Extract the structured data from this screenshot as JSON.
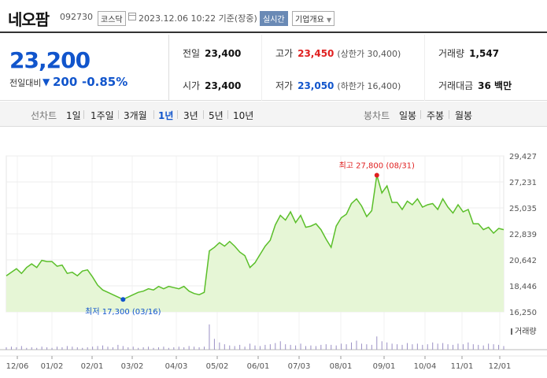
{
  "header": {
    "stock_name": "네오팜",
    "stock_code": "092730",
    "market": "코스닥",
    "date_text": "2023.12.06 10:22 기준(장중)",
    "realtime_label": "실시간",
    "company_overview_label": "기업개요",
    "icons": {
      "calendar": "calendar-icon",
      "dropdown": "chevron-down-icon"
    }
  },
  "summary": {
    "current_price": "23,200",
    "diff_label": "전일대비",
    "diff_arrow": "▼",
    "diff_value": "200",
    "diff_rate": "-0.85%",
    "prev_close_label": "전일",
    "prev_close": "23,400",
    "open_label": "시가",
    "open": "23,400",
    "high_label": "고가",
    "high": "23,450",
    "upper_limit": "(상한가 30,400)",
    "low_label": "저가",
    "low": "23,050",
    "lower_limit": "(하한가 16,400)",
    "volume_label": "거래량",
    "volume": "1,547",
    "amount_label": "거래대금",
    "amount": "36 백만",
    "colors": {
      "up": "#e02020",
      "down": "#1155cc"
    }
  },
  "tabs": {
    "line_chart_label": "선차트",
    "periods": [
      "1일",
      "1주일",
      "3개월",
      "1년",
      "3년",
      "5년",
      "10년"
    ],
    "active_period": "1년",
    "candle_chart_label": "봉차트",
    "candles": [
      "일봉",
      "주봉",
      "월봉"
    ]
  },
  "chart_data": {
    "type": "area",
    "title": "",
    "xlabel": "",
    "ylabel": "",
    "x_ticks": [
      "12/06",
      "01/02",
      "02/01",
      "03/02",
      "04/03",
      "05/02",
      "06/01",
      "07/03",
      "08/01",
      "09/01",
      "10/04",
      "11/01",
      "12/01"
    ],
    "y_ticks": [
      29427,
      27231,
      25035,
      22839,
      20642,
      18446,
      16250
    ],
    "y_tick_labels": [
      "29,427",
      "27,231",
      "25,035",
      "22,839",
      "20,642",
      "18,446",
      "16,250"
    ],
    "ylim": [
      16250,
      29427
    ],
    "volume_label": "거래량",
    "high_annotation": "최고 27,800 (08/31)",
    "low_annotation": "최저 17,300 (03/16)",
    "high_point": {
      "x": "08/31",
      "y": 27800
    },
    "low_point": {
      "x": "03/16",
      "y": 17300
    },
    "series": [
      {
        "values": [
          19300,
          19600,
          19900,
          19500,
          20000,
          20300,
          20000,
          20600,
          20500,
          20500,
          20100,
          20200,
          19500,
          19600,
          19300,
          19700,
          19800,
          19200,
          18500,
          18100,
          17900,
          17700,
          17500,
          17300,
          17500,
          17700,
          17900,
          18000,
          18200,
          18100,
          18400,
          18200,
          18400,
          18300,
          18200,
          18400,
          18000,
          17800,
          17700,
          17900,
          21400,
          21700,
          22100,
          21800,
          22200,
          21800,
          21300,
          21000,
          20000,
          20400,
          21100,
          21800,
          22300,
          23600,
          24400,
          24000,
          24700,
          23800,
          24400,
          23400,
          23500,
          23700,
          23200,
          22400,
          21700,
          23500,
          24200,
          24500,
          25400,
          25800,
          25200,
          24300,
          24800,
          27800,
          26300,
          26900,
          25500,
          25500,
          24900,
          25600,
          25300,
          25800,
          25100,
          25300,
          25400,
          24900,
          25800,
          25100,
          24600,
          25300,
          24700,
          24900,
          23700,
          23700,
          23200,
          23400,
          22900,
          23300,
          23200
        ]
      }
    ],
    "volume_series": [
      4,
      5,
      4,
      6,
      3,
      4,
      3,
      5,
      4,
      3,
      5,
      4,
      6,
      5,
      4,
      3,
      4,
      5,
      6,
      7,
      5,
      4,
      8,
      6,
      4,
      5,
      3,
      4,
      5,
      3,
      4,
      5,
      3,
      4,
      5,
      4,
      6,
      5,
      4,
      5,
      42,
      18,
      12,
      9,
      7,
      6,
      8,
      5,
      10,
      7,
      6,
      8,
      9,
      11,
      14,
      9,
      8,
      7,
      10,
      6,
      7,
      6,
      8,
      9,
      8,
      7,
      10,
      9,
      12,
      15,
      10,
      9,
      8,
      22,
      14,
      12,
      10,
      9,
      8,
      11,
      9,
      10,
      8,
      9,
      12,
      10,
      11,
      9,
      8,
      10,
      9,
      12,
      9,
      8,
      7,
      10,
      9,
      8,
      6
    ],
    "line_color": "#5bbf2a",
    "fill_color": "#e6f6d6",
    "grid": true
  }
}
